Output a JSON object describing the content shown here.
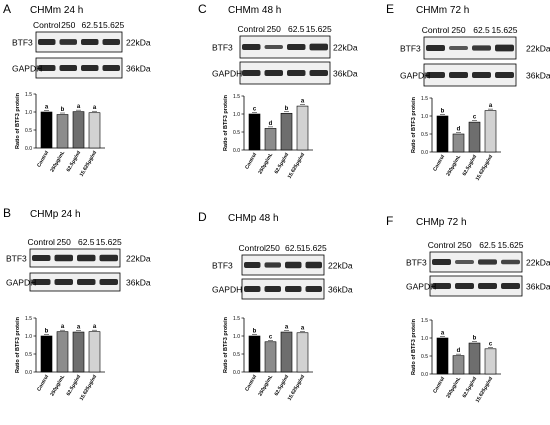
{
  "colors": {
    "control": "#000000",
    "dose250": "#8c8c8c",
    "dose62": "#6e6e6e",
    "dose15": "#d2d2d2",
    "band": "#2a2a2a",
    "membrane": "#f0f0f0"
  },
  "chart_data": [
    {
      "type": "bar",
      "panel": "A",
      "title": "CHMm 24 h",
      "lanes": [
        "Control",
        "250",
        "62.5",
        "15.625"
      ],
      "blots": [
        {
          "label": "BTF3",
          "size": "22kDa"
        },
        {
          "label": "GAPDH",
          "size": "36kDa"
        }
      ],
      "categories": [
        "Control",
        "250μg/mL",
        "62.5μg/ml",
        "15.625μg/ml"
      ],
      "values": [
        1.0,
        0.93,
        1.01,
        0.98
      ],
      "letters": [
        "a",
        "b",
        "a",
        "a"
      ],
      "ylabel": "Ratio of BTF3 protein",
      "ylim": [
        0,
        1.5
      ],
      "yticks": [
        "0.0",
        "0.5",
        "1.0",
        "1.5"
      ]
    },
    {
      "type": "bar",
      "panel": "C",
      "title": "CHMm 48 h",
      "lanes": [
        "Control",
        "250",
        "62.5",
        "15.625"
      ],
      "blots": [
        {
          "label": "BTF3",
          "size": "22kDa"
        },
        {
          "label": "GAPDH",
          "size": "36kDa"
        }
      ],
      "categories": [
        "Control",
        "250μg/mL",
        "62.5μg/ml",
        "15.625μg/ml"
      ],
      "values": [
        1.0,
        0.6,
        1.02,
        1.22
      ],
      "letters": [
        "c",
        "d",
        "b",
        "a"
      ],
      "ylabel": "Ratio of BTF3 protein",
      "ylim": [
        0,
        1.5
      ],
      "yticks": [
        "0.0",
        "0.5",
        "1.0",
        "1.5"
      ]
    },
    {
      "type": "bar",
      "panel": "E",
      "title": "CHMm 72 h",
      "lanes": [
        "Control",
        "250",
        "62.5",
        "15.625"
      ],
      "blots": [
        {
          "label": "BTF3",
          "size": "22kDa"
        },
        {
          "label": "GAPDH",
          "size": "36kDa"
        }
      ],
      "categories": [
        "Control",
        "250μg/mL",
        "62.5μg/ml",
        "15.625μg/ml"
      ],
      "values": [
        1.0,
        0.5,
        0.83,
        1.15
      ],
      "letters": [
        "b",
        "d",
        "c",
        "a"
      ],
      "ylabel": "Ratio of BTF3 protein",
      "ylim": [
        0,
        1.5
      ],
      "yticks": [
        "0.0",
        "0.5",
        "1.0",
        "1.5"
      ]
    },
    {
      "type": "bar",
      "panel": "B",
      "title": "CHMp 24 h",
      "lanes": [
        "Control",
        "250",
        "62.5",
        "15.625"
      ],
      "blots": [
        {
          "label": "BTF3",
          "size": "22kDa"
        },
        {
          "label": "GAPDH",
          "size": "36kDa"
        }
      ],
      "categories": [
        "Control",
        "250μg/mL",
        "62.5μg/ml",
        "15.625μg/ml"
      ],
      "values": [
        1.0,
        1.12,
        1.11,
        1.12
      ],
      "letters": [
        "b",
        "a",
        "a",
        "a"
      ],
      "ylabel": "Ratio of BTF3 protein",
      "ylim": [
        0,
        1.5
      ],
      "yticks": [
        "0.0",
        "0.5",
        "1.0",
        "1.5"
      ]
    },
    {
      "type": "bar",
      "panel": "D",
      "title": "CHMp 48 h",
      "lanes": [
        "Control",
        "250",
        "62.5",
        "15.625"
      ],
      "blots": [
        {
          "label": "BTF3",
          "size": "22kDa"
        },
        {
          "label": "GAPDH",
          "size": "36kDa"
        }
      ],
      "categories": [
        "Control",
        "250μg/mL",
        "62.5μg/ml",
        "15.625μg/ml"
      ],
      "values": [
        1.0,
        0.84,
        1.11,
        1.09
      ],
      "letters": [
        "b",
        "c",
        "a",
        "a"
      ],
      "ylabel": "Ratio of BTF3 protein",
      "ylim": [
        0,
        1.5
      ],
      "yticks": [
        "0.0",
        "0.5",
        "1.0",
        "1.5"
      ]
    },
    {
      "type": "bar",
      "panel": "F",
      "title": "CHMp 72 h",
      "lanes": [
        "Control",
        "250",
        "62.5",
        "15.625"
      ],
      "blots": [
        {
          "label": "BTF3",
          "size": "22kDa"
        },
        {
          "label": "GAPDH",
          "size": "36kDa"
        }
      ],
      "categories": [
        "Control",
        "250μg/mL",
        "62.5μg/ml",
        "15.625μg/ml"
      ],
      "values": [
        1.0,
        0.51,
        0.86,
        0.7
      ],
      "letters": [
        "a",
        "d",
        "b",
        "c"
      ],
      "ylabel": "Ratio of BTF3 protein",
      "ylim": [
        0,
        1.5
      ],
      "yticks": [
        "0.0",
        "0.5",
        "1.0",
        "1.5"
      ]
    }
  ]
}
